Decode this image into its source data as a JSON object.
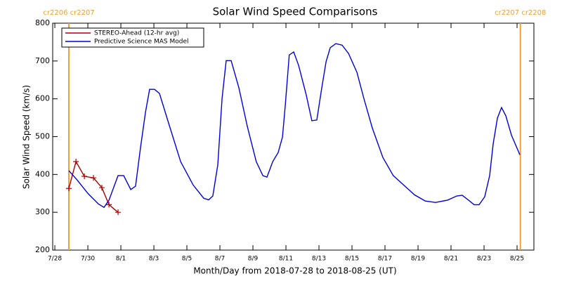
{
  "chart_data": {
    "type": "line",
    "title": "Solar Wind Speed Comparisons",
    "xlabel": "Month/Day from 2018-07-28 to 2018-08-25 (UT)",
    "ylabel": "Solar Wind Speed (km/s)",
    "xlim": [
      -0.13,
      29.02
    ],
    "xticks": [
      {
        "value": 0,
        "label": "7/28"
      },
      {
        "value": 2,
        "label": "7/30"
      },
      {
        "value": 4,
        "label": "8/1"
      },
      {
        "value": 6,
        "label": "8/3"
      },
      {
        "value": 8,
        "label": "8/5"
      },
      {
        "value": 10,
        "label": "8/7"
      },
      {
        "value": 12,
        "label": "8/9"
      },
      {
        "value": 14,
        "label": "8/11"
      },
      {
        "value": 16,
        "label": "8/13"
      },
      {
        "value": 18,
        "label": "8/15"
      },
      {
        "value": 20,
        "label": "8/17"
      },
      {
        "value": 22,
        "label": "8/19"
      },
      {
        "value": 24,
        "label": "8/21"
      },
      {
        "value": 26,
        "label": "8/23"
      },
      {
        "value": 28,
        "label": "8/25"
      }
    ],
    "ylim": [
      200,
      800
    ],
    "yticks": [
      200,
      300,
      400,
      500,
      600,
      700,
      800
    ],
    "legend": "upper left",
    "annotations": [
      {
        "text": "cr2206 cr2207",
        "x": 0.85,
        "color": "#f0a030"
      },
      {
        "text": "cr2207 cr2208",
        "x": 28.2,
        "color": "#f0a030"
      }
    ],
    "series": [
      {
        "name": "STEREO-Ahead (12-hr avg)",
        "color": "#b00000",
        "marker": "+",
        "x": [
          0.85,
          1.28,
          1.79,
          2.34,
          2.85,
          3.28,
          3.83
        ],
        "values": [
          363,
          434,
          395,
          391,
          365,
          320,
          300
        ]
      },
      {
        "name": "Predictive Science MAS Model",
        "color": "#0000dd",
        "x": [
          0.85,
          1.36,
          2.0,
          2.64,
          2.98,
          3.28,
          3.83,
          4.17,
          4.6,
          4.89,
          5.19,
          5.49,
          5.74,
          6.04,
          6.34,
          6.89,
          7.62,
          8.38,
          9.02,
          9.32,
          9.57,
          9.87,
          10.13,
          10.38,
          10.68,
          11.15,
          11.66,
          12.2,
          12.6,
          12.85,
          13.2,
          13.53,
          13.79,
          13.96,
          14.2,
          14.47,
          14.77,
          15.23,
          15.57,
          15.87,
          16.17,
          16.43,
          16.68,
          17.02,
          17.4,
          17.79,
          18.3,
          18.72,
          19.23,
          19.87,
          20.5,
          21.36,
          21.79,
          22.43,
          23.06,
          23.79,
          24.34,
          24.68,
          25.06,
          25.4,
          25.7,
          26.04,
          26.34,
          26.55,
          26.81,
          27.06,
          27.32,
          27.66,
          28.17
        ],
        "values": [
          410,
          385,
          350,
          322,
          313,
          332,
          397,
          397,
          360,
          369,
          471,
          564,
          625,
          625,
          614,
          536,
          434,
          372,
          337,
          333,
          343,
          425,
          601,
          701,
          701,
          629,
          527,
          434,
          397,
          393,
          434,
          458,
          499,
          583,
          716,
          724,
          688,
          610,
          542,
          544,
          629,
          698,
          735,
          746,
          742,
          720,
          670,
          601,
          523,
          445,
          397,
          363,
          346,
          330,
          326,
          332,
          343,
          345,
          332,
          320,
          320,
          341,
          397,
          480,
          549,
          577,
          555,
          504,
          452
        ]
      }
    ]
  }
}
